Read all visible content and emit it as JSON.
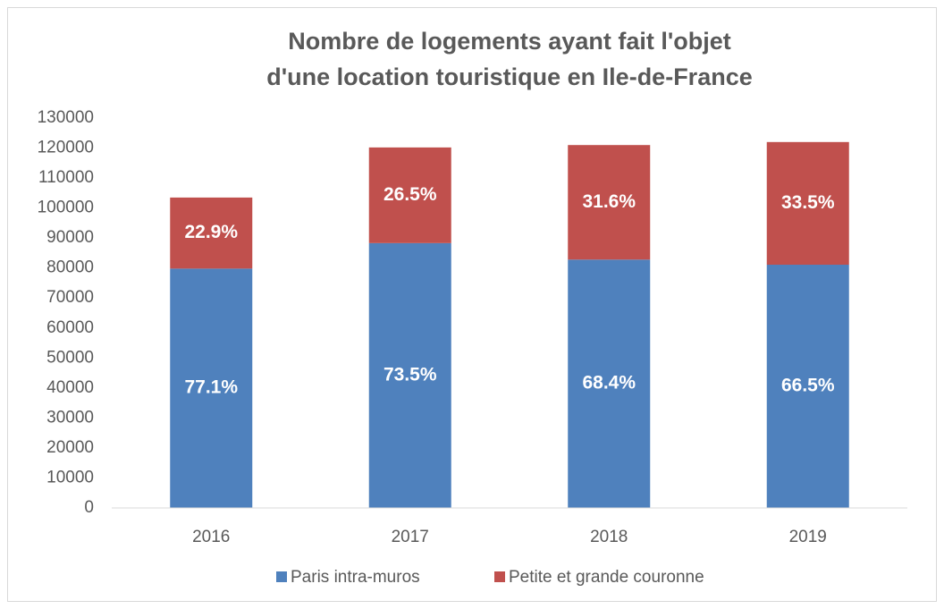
{
  "chart_data": {
    "type": "stacked_bar",
    "title": [
      "Nombre de logements ayant fait l'objet",
      "d'une location touristique en Ile-de-France"
    ],
    "categories": [
      "2016",
      "2017",
      "2018",
      "2019"
    ],
    "series": [
      {
        "name": "Paris intra-muros",
        "color": "#4f81bd",
        "values": [
          79800,
          88300,
          82800,
          81100
        ],
        "share_labels": [
          "77.1%",
          "73.5%",
          "68.4%",
          "66.5%"
        ]
      },
      {
        "name": "Petite et grande couronne",
        "color": "#c0504d",
        "values": [
          23700,
          31900,
          38200,
          40900
        ],
        "share_labels": [
          "22.9%",
          "26.5%",
          "31.6%",
          "33.5%"
        ]
      }
    ],
    "ylim": [
      0,
      130000
    ],
    "yticks": [
      0,
      10000,
      20000,
      30000,
      40000,
      50000,
      60000,
      70000,
      80000,
      90000,
      100000,
      110000,
      120000,
      130000
    ],
    "grid": false,
    "legend": "bottom"
  }
}
